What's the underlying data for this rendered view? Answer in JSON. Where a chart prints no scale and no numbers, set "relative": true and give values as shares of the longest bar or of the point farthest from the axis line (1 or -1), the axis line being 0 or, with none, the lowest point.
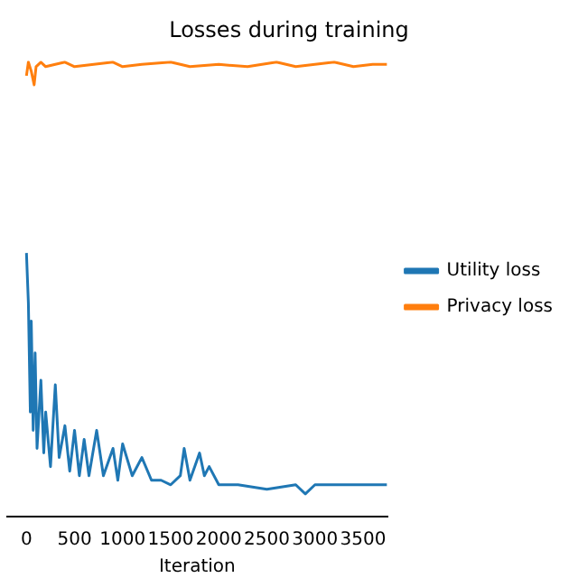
{
  "chart_data": {
    "type": "line",
    "title": "Losses during training",
    "xlabel": "Iteration",
    "relative": true,
    "xlim": [
      -200,
      3750
    ],
    "xticks": [
      0,
      500,
      1000,
      1500,
      2000,
      2500,
      3000,
      3500
    ],
    "grid": false,
    "legend": "right",
    "marker": "none",
    "series": [
      {
        "name": "Utility loss",
        "color": "#1f77b4",
        "x": [
          0,
          20,
          40,
          50,
          70,
          90,
          110,
          150,
          180,
          200,
          250,
          300,
          340,
          400,
          450,
          500,
          550,
          600,
          650,
          730,
          800,
          900,
          950,
          1000,
          1100,
          1200,
          1300,
          1400,
          1500,
          1600,
          1640,
          1700,
          1800,
          1850,
          1900,
          2000,
          2200,
          2500,
          2800,
          2900,
          3000,
          3300,
          3600,
          3750
        ],
        "values": [
          0.58,
          0.47,
          0.23,
          0.43,
          0.19,
          0.36,
          0.15,
          0.3,
          0.14,
          0.23,
          0.11,
          0.29,
          0.13,
          0.2,
          0.1,
          0.19,
          0.09,
          0.17,
          0.09,
          0.19,
          0.09,
          0.15,
          0.08,
          0.16,
          0.09,
          0.13,
          0.08,
          0.08,
          0.07,
          0.09,
          0.15,
          0.08,
          0.14,
          0.09,
          0.11,
          0.07,
          0.07,
          0.06,
          0.07,
          0.05,
          0.07,
          0.07,
          0.07,
          0.07
        ]
      },
      {
        "name": "Privacy loss",
        "color": "#ff7f0e",
        "x": [
          0,
          20,
          50,
          80,
          100,
          150,
          200,
          300,
          400,
          500,
          700,
          900,
          1000,
          1200,
          1500,
          1700,
          2000,
          2300,
          2600,
          2800,
          3000,
          3200,
          3400,
          3600,
          3750
        ],
        "values": [
          0.97,
          1.0,
          0.98,
          0.95,
          0.99,
          1.0,
          0.99,
          0.995,
          1.0,
          0.99,
          0.995,
          1.0,
          0.99,
          0.995,
          1.0,
          0.99,
          0.995,
          0.99,
          1.0,
          0.99,
          0.995,
          1.0,
          0.99,
          0.995,
          0.995
        ]
      }
    ]
  }
}
